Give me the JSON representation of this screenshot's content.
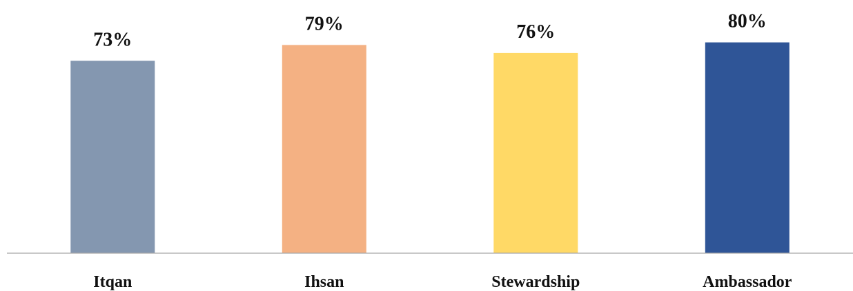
{
  "chart_data": {
    "type": "bar",
    "categories": [
      "Itqan",
      "Ihsan",
      "Stewardship",
      "Ambassador"
    ],
    "values": [
      73,
      79,
      76,
      80
    ],
    "value_labels": [
      "73%",
      "79%",
      "76%",
      "80%"
    ],
    "colors": [
      "#8497b0",
      "#f4b183",
      "#ffd966",
      "#2f5597"
    ],
    "title": "",
    "xlabel": "",
    "ylabel": "",
    "ylim": [
      0,
      100
    ],
    "grid": false,
    "legend": "none"
  }
}
